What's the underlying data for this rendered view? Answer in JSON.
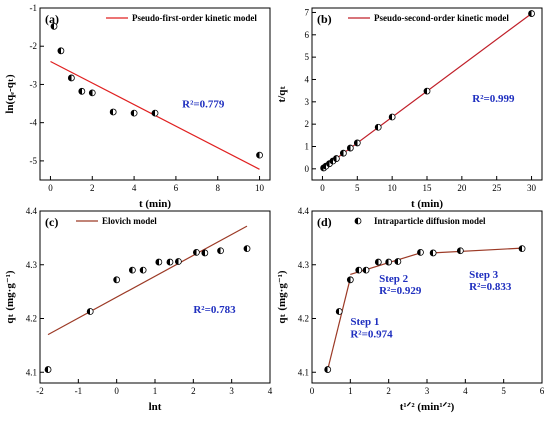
{
  "chart_data": [
    {
      "type": "scatter",
      "panel_label": "(a)",
      "xlabel": "t (min)",
      "ylabel": "ln(qₑ-qₜ)",
      "xlim": [
        -0.5,
        10.5
      ],
      "ylim": [
        -5.5,
        -1
      ],
      "xticks": [
        0,
        2,
        4,
        6,
        8,
        10
      ],
      "yticks": [
        -5,
        -4,
        -3,
        -2,
        -1
      ],
      "legend": "Pseudo-first-order kinetic model",
      "legend_position": "top-right",
      "annotations": [
        {
          "text": "R²=0.779",
          "x": 6.3,
          "y": -3.6
        }
      ],
      "series": [
        {
          "name": "",
          "kind": "points",
          "x": [
            0.17,
            0.5,
            1,
            1.5,
            2,
            3,
            4,
            5,
            10
          ],
          "y": [
            -1.48,
            -2.12,
            -2.83,
            -3.18,
            -3.22,
            -3.72,
            -3.75,
            -3.75,
            -4.85
          ]
        },
        {
          "name": "Pseudo-first-order kinetic model",
          "kind": "fit",
          "x": [
            0,
            10
          ],
          "y": [
            -2.4,
            -5.22
          ]
        }
      ]
    },
    {
      "type": "scatter",
      "panel_label": "(b)",
      "xlabel": "t (min)",
      "ylabel": "t/qₜ",
      "xlim": [
        -1.5,
        31.5
      ],
      "ylim": [
        -0.5,
        7.2
      ],
      "xticks": [
        0,
        5,
        10,
        15,
        20,
        25,
        30
      ],
      "yticks": [
        0,
        1,
        2,
        3,
        4,
        5,
        6,
        7
      ],
      "legend": "Pseudo-second-order kinetic model",
      "legend_position": "top-left",
      "annotations": [
        {
          "text": "R²=0.999",
          "x": 21.5,
          "y": 3.0
        }
      ],
      "series": [
        {
          "name": "",
          "kind": "points",
          "x": [
            0.17,
            0.5,
            1,
            1.5,
            2,
            3,
            4,
            5,
            8,
            10,
            15,
            30
          ],
          "y": [
            0.04,
            0.12,
            0.23,
            0.35,
            0.46,
            0.7,
            0.93,
            1.16,
            1.86,
            2.32,
            3.48,
            6.95
          ]
        },
        {
          "name": "Pseudo-second-order kinetic model",
          "kind": "fit",
          "x": [
            0,
            30
          ],
          "y": [
            0,
            6.95
          ]
        }
      ]
    },
    {
      "type": "scatter",
      "panel_label": "(c)",
      "xlabel": "lnt",
      "ylabel": "qₜ (mg·g⁻¹)",
      "xlim": [
        -2,
        4
      ],
      "ylim": [
        4.08,
        4.4
      ],
      "xticks": [
        -2,
        -1,
        0,
        1,
        2,
        3,
        4
      ],
      "yticks": [
        4.1,
        4.2,
        4.3,
        4.4
      ],
      "legend": "Elovich model",
      "legend_position": "top-left",
      "annotations": [
        {
          "text": "R²=0.783",
          "x": 2.0,
          "y": 4.21
        }
      ],
      "series": [
        {
          "name": "",
          "kind": "points",
          "x": [
            -1.79,
            -0.69,
            0,
            0.41,
            0.69,
            1.1,
            1.39,
            1.61,
            2.08,
            2.3,
            2.71,
            3.4
          ],
          "y": [
            4.105,
            4.213,
            4.272,
            4.29,
            4.29,
            4.305,
            4.305,
            4.306,
            4.323,
            4.322,
            4.326,
            4.33
          ]
        },
        {
          "name": "Elovich model",
          "kind": "fit",
          "x": [
            -1.79,
            3.4
          ],
          "y": [
            4.17,
            4.372
          ]
        }
      ]
    },
    {
      "type": "scatter",
      "panel_label": "(d)",
      "xlabel": "t¹ᐟ² (min¹ᐟ²)",
      "ylabel": "qₜ (mg·g⁻¹)",
      "xlim": [
        0,
        6
      ],
      "ylim": [
        4.08,
        4.4
      ],
      "xticks": [
        0,
        1,
        2,
        3,
        4,
        5,
        6
      ],
      "yticks": [
        4.1,
        4.2,
        4.3,
        4.4
      ],
      "legend": "Intraparticle diffusion model",
      "legend_position": "top-left",
      "annotations": [
        {
          "text": "Step 1",
          "x": 1.0,
          "y": 4.188
        },
        {
          "text": "R²=0.974",
          "x": 1.0,
          "y": 4.165
        },
        {
          "text": "Step 2",
          "x": 1.75,
          "y": 4.268
        },
        {
          "text": "R²=0.929",
          "x": 1.75,
          "y": 4.246
        },
        {
          "text": "Step 3",
          "x": 4.1,
          "y": 4.275
        },
        {
          "text": "R²=0.833",
          "x": 4.1,
          "y": 4.253
        }
      ],
      "series": [
        {
          "name": "",
          "kind": "points",
          "x": [
            0.41,
            0.71,
            1,
            1.22,
            1.41,
            1.73,
            2,
            2.24,
            2.83,
            3.16,
            3.87,
            5.48
          ],
          "y": [
            4.105,
            4.213,
            4.272,
            4.29,
            4.29,
            4.305,
            4.305,
            4.306,
            4.323,
            4.322,
            4.326,
            4.33
          ]
        },
        {
          "name": "Step 1",
          "kind": "fit",
          "x": [
            0.41,
            1.0
          ],
          "y": [
            4.105,
            4.275
          ]
        },
        {
          "name": "Step 2",
          "kind": "fit",
          "x": [
            1.0,
            2.83
          ],
          "y": [
            4.282,
            4.322
          ]
        },
        {
          "name": "Step 3",
          "kind": "fit",
          "x": [
            3.16,
            5.48
          ],
          "y": [
            4.322,
            4.331
          ]
        }
      ]
    }
  ]
}
